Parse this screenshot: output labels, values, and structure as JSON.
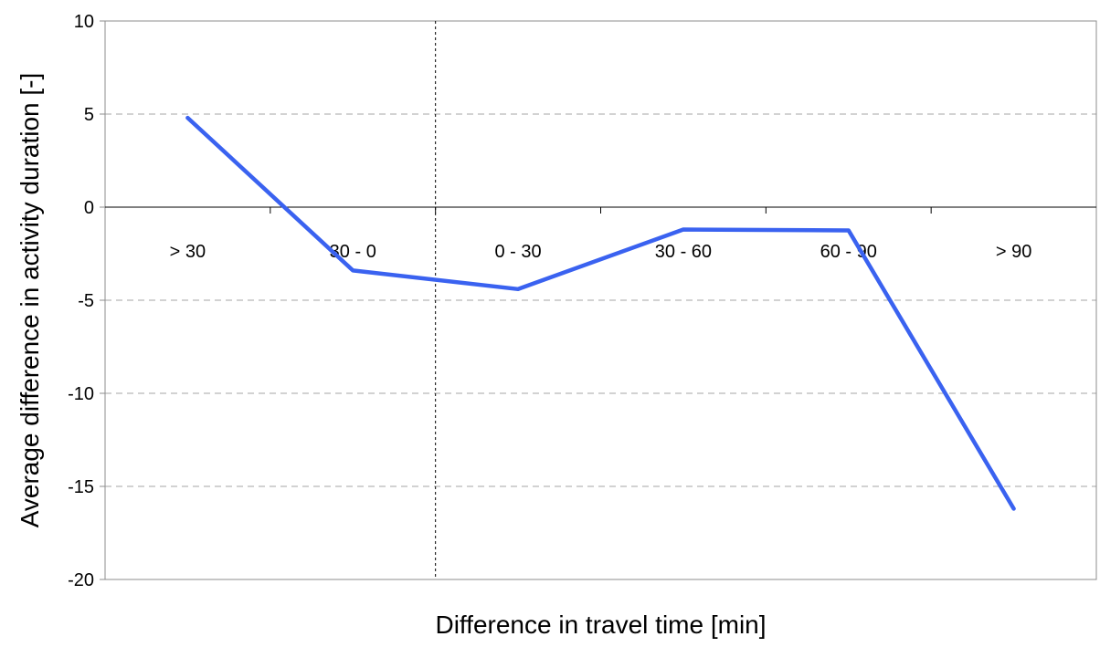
{
  "chart_data": {
    "type": "line",
    "title": "",
    "xlabel": "Difference in travel time [min]",
    "ylabel": "Average difference in activity duration [-]",
    "categories": [
      "> 30",
      "30 - 0",
      "0 - 30",
      "30 - 60",
      "60 - 90",
      "> 90"
    ],
    "series": [
      {
        "values": [
          4.8,
          -3.4,
          -4.4,
          -1.2,
          -1.25,
          -16.2
        ]
      }
    ],
    "ylim": [
      -20,
      10
    ],
    "yticks": [
      10,
      5,
      0,
      -5,
      -10,
      -15,
      -20
    ],
    "grid": "horizontal dashed",
    "reference_line": "vertical dotted between 30 - 0 and 0 - 30",
    "colors": {
      "series": "#3A62F0",
      "grid": "#A6A6A6",
      "axis": "#000000"
    }
  }
}
